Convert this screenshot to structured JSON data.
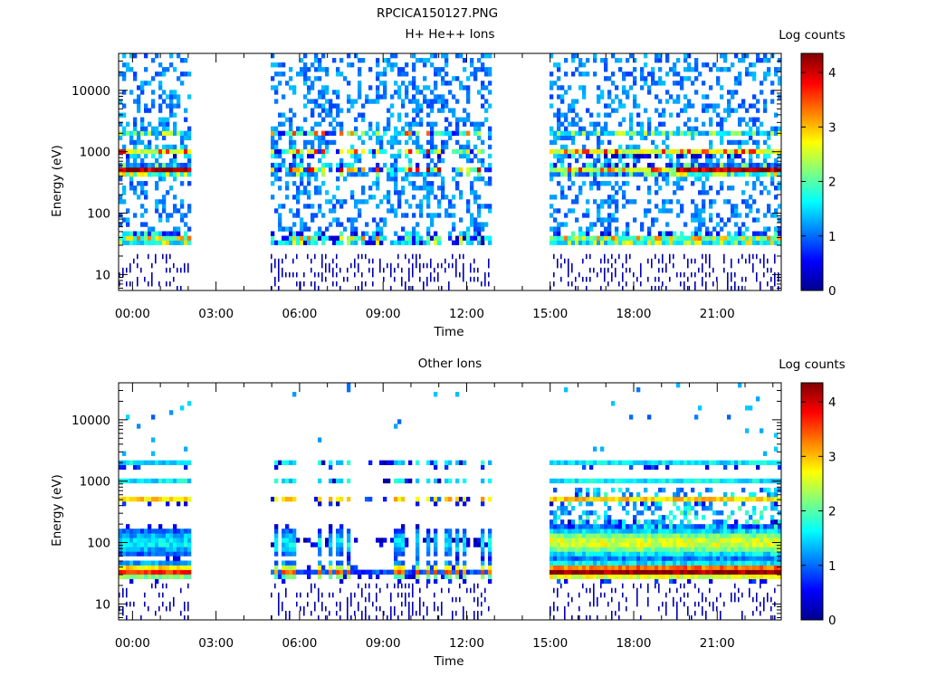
{
  "figure_title": "RPCICA150127.PNG",
  "chart_data": [
    {
      "type": "heatmap",
      "title": "H+ He++ Ions",
      "xlabel": "Time",
      "ylabel": "Energy (eV)",
      "x_ticks": [
        "00:00",
        "03:00",
        "06:00",
        "09:00",
        "12:00",
        "15:00",
        "18:00",
        "21:00"
      ],
      "x_range_hours": [
        -0.5,
        23.3
      ],
      "y_scale": "log",
      "y_ticks": [
        "10",
        "100",
        "1000",
        "10000"
      ],
      "y_range": [
        5.5,
        40000
      ],
      "colorbar": {
        "label": "Log counts",
        "ticks": [
          "0",
          "1",
          "2",
          "3",
          "4"
        ],
        "range": [
          0,
          4.35
        ]
      },
      "data_gaps_hours": [
        [
          2.1,
          5.0
        ],
        [
          12.9,
          15.0
        ]
      ],
      "data_intervals_hours": [
        [
          -0.5,
          2.1
        ],
        [
          5.0,
          12.9
        ],
        [
          15.0,
          23.3
        ]
      ],
      "bands": [
        {
          "center_eV": 500,
          "peak_log_counts": 4.1,
          "note": "proton peak, strongest 00:00-02:00 and 20:00-23:00"
        },
        {
          "center_eV": 1000,
          "peak_log_counts": 3.0
        },
        {
          "center_eV": 37,
          "peak_log_counts": 2.3
        }
      ]
    },
    {
      "type": "heatmap",
      "title": "Other Ions",
      "xlabel": "Time",
      "ylabel": "Energy (eV)",
      "x_ticks": [
        "00:00",
        "03:00",
        "06:00",
        "09:00",
        "12:00",
        "15:00",
        "18:00",
        "21:00"
      ],
      "x_range_hours": [
        -0.5,
        23.3
      ],
      "y_scale": "log",
      "y_ticks": [
        "10",
        "100",
        "1000",
        "10000"
      ],
      "y_range": [
        5.5,
        40000
      ],
      "colorbar": {
        "label": "Log counts",
        "ticks": [
          "0",
          "1",
          "2",
          "3",
          "4"
        ],
        "range": [
          0,
          4.35
        ]
      },
      "data_gaps_hours": [
        [
          2.1,
          5.0
        ],
        [
          12.9,
          15.0
        ]
      ],
      "data_intervals_hours": [
        [
          -0.5,
          2.1
        ],
        [
          5.0,
          12.9
        ],
        [
          15.0,
          23.3
        ]
      ],
      "bands": [
        {
          "center_eV": 35,
          "peak_log_counts": 4.3,
          "note": "strong low-energy band, most intense 15:00-23:00"
        },
        {
          "center_eV": 500,
          "peak_log_counts": 3.2
        },
        {
          "center_eV": 1900,
          "peak_log_counts": 2.0
        }
      ]
    }
  ]
}
